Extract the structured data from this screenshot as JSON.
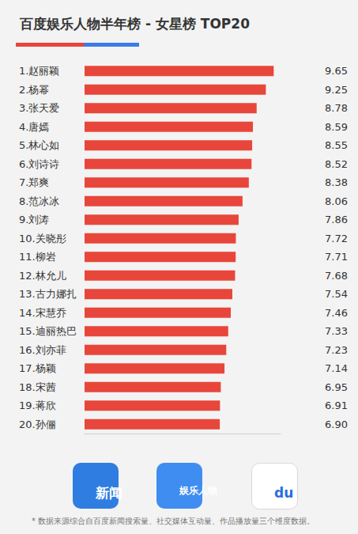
{
  "chart_data": {
    "type": "bar",
    "title": "百度娱乐人物半年榜 - 女星榜 TOP20",
    "orientation": "horizontal",
    "categories": [
      "1.赵丽颖",
      "2.杨幂",
      "3.张天爱",
      "4.唐嫣",
      "5.林心如",
      "6.刘诗诗",
      "7.郑爽",
      "8.范冰冰",
      "9.刘涛",
      "10.关晓彤",
      "11.柳岩",
      "12.林允儿",
      "13.古力娜扎",
      "14.宋慧乔",
      "15.迪丽热巴",
      "16.刘亦菲",
      "17.杨颖",
      "18.宋茜",
      "19.蒋欣",
      "20.孙俪"
    ],
    "values": [
      9.65,
      9.25,
      8.78,
      8.59,
      8.55,
      8.52,
      8.38,
      8.06,
      7.86,
      7.72,
      7.71,
      7.68,
      7.54,
      7.46,
      7.33,
      7.23,
      7.14,
      6.95,
      6.91,
      6.9
    ],
    "value_labels": [
      "9.65",
      "9.25",
      "8.78",
      "8.59",
      "8.55",
      "8.52",
      "8.38",
      "8.06",
      "7.86",
      "7.72",
      "7.71",
      "7.68",
      "7.54",
      "7.46",
      "7.33",
      "7.23",
      "7.14",
      "6.95",
      "6.91",
      "6.90"
    ],
    "color": "#e8463b",
    "xlim": [
      0,
      10
    ],
    "data_labels": true,
    "tick_labels": "y",
    "grid": false,
    "logos": [
      "新闻",
      "娱乐人物",
      "du"
    ],
    "note": "* 数据来源综合自百度新闻搜索量、社交媒体互动量、作品播放量三个维度数据。"
  }
}
